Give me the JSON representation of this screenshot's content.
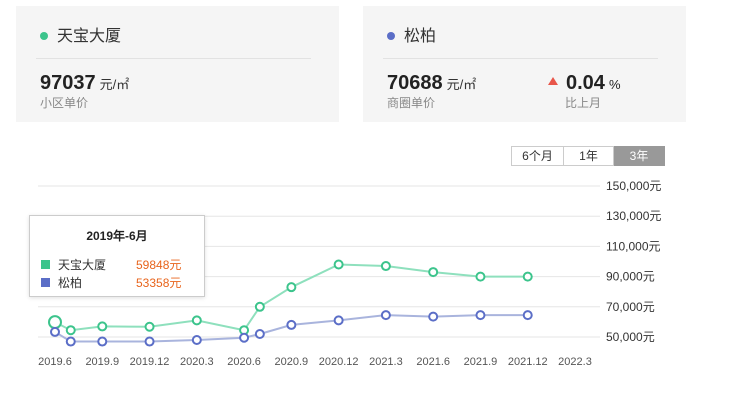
{
  "cards": [
    {
      "name": "天宝大厦",
      "dot_color": "#3cc48c",
      "price": "97037",
      "unit": "元/㎡",
      "sub": "小区单价"
    },
    {
      "name": "松柏",
      "dot_color": "#5b6ec7",
      "price": "70688",
      "unit": "元/㎡",
      "sub": "商圈单价",
      "change_value": "0.04",
      "change_unit": "%",
      "change_label": "比上月",
      "change_color": "#e8564a"
    }
  ],
  "range_buttons": [
    "6个月",
    "1年",
    "3年"
  ],
  "active_range": "3年",
  "tooltip": {
    "title": "2019年-6月",
    "rows": [
      {
        "name": "天宝大厦",
        "value": "59848元",
        "color": "#3cc48c"
      },
      {
        "name": "松柏",
        "value": "53358元",
        "color": "#5b6ec7"
      }
    ]
  },
  "chart_data": {
    "type": "line",
    "x": [
      "2019.6",
      "2019.7",
      "2019.9",
      "2019.12",
      "2020.3",
      "2020.6",
      "2020.7",
      "2020.9",
      "2020.12",
      "2021.3",
      "2021.6",
      "2021.9",
      "2021.12"
    ],
    "xticks": [
      "2019.6",
      "2019.9",
      "2019.12",
      "2020.3",
      "2020.6",
      "2020.9",
      "2020.12",
      "2021.3",
      "2021.6",
      "2021.9",
      "2021.12",
      "2022.3"
    ],
    "yticks": [
      "150,000元",
      "130,000元",
      "110,000元",
      "90,000元",
      "70,000元",
      "50,000元"
    ],
    "ylim": [
      50000,
      150000
    ],
    "series": [
      {
        "name": "天宝大厦",
        "color": "#8ee0bd",
        "marker_color": "#3cc48c",
        "values": [
          59848,
          54500,
          57000,
          56800,
          61000,
          54500,
          70000,
          83000,
          98000,
          97000,
          93000,
          90000,
          90000
        ]
      },
      {
        "name": "松柏",
        "color": "#a9b4dd",
        "marker_color": "#5b6ec7",
        "values": [
          53358,
          47000,
          47000,
          47000,
          48000,
          49500,
          52000,
          58000,
          61000,
          64500,
          63500,
          64500,
          64500
        ]
      }
    ]
  }
}
